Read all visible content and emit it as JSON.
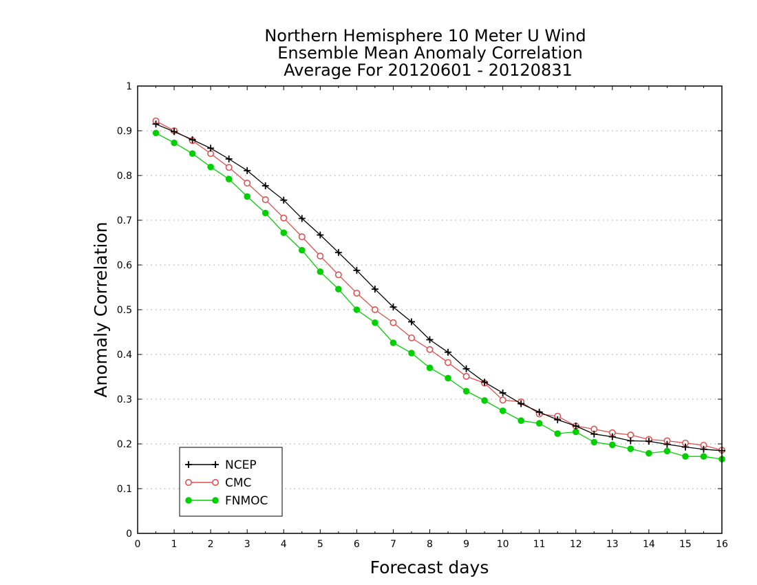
{
  "chart_data": {
    "type": "line",
    "title": [
      "Northern Hemisphere 10 Meter U Wind",
      "Ensemble Mean Anomaly Correlation",
      "Average For 20120601 - 20120831"
    ],
    "xlabel": "Forecast days",
    "ylabel": "Anomaly Correlation",
    "xlim": [
      0,
      16
    ],
    "ylim": [
      0,
      1
    ],
    "xticks": [
      0,
      1,
      2,
      3,
      4,
      5,
      6,
      7,
      8,
      9,
      10,
      11,
      12,
      13,
      14,
      15,
      16
    ],
    "yticks": [
      0,
      0.1,
      0.2,
      0.3,
      0.4,
      0.5,
      0.6,
      0.7,
      0.8,
      0.9,
      1
    ],
    "grid": true,
    "legend_position": "bottom-left",
    "x": [
      0.5,
      1,
      1.5,
      2,
      2.5,
      3,
      3.5,
      4,
      4.5,
      5,
      5.5,
      6,
      6.5,
      7,
      7.5,
      8,
      8.5,
      9,
      9.5,
      10,
      10.5,
      11,
      11.5,
      12,
      12.5,
      13,
      13.5,
      14,
      14.5,
      15,
      15.5,
      16
    ],
    "series": [
      {
        "name": "NCEP",
        "color": "#000000",
        "marker": "plus",
        "values": [
          0.915,
          0.898,
          0.88,
          0.861,
          0.837,
          0.811,
          0.777,
          0.745,
          0.704,
          0.667,
          0.628,
          0.588,
          0.546,
          0.506,
          0.473,
          0.433,
          0.405,
          0.368,
          0.338,
          0.314,
          0.29,
          0.271,
          0.254,
          0.24,
          0.222,
          0.216,
          0.207,
          0.206,
          0.199,
          0.193,
          0.188,
          0.185
        ]
      },
      {
        "name": "CMC",
        "color": "#e05050",
        "marker": "open-circle",
        "values": [
          0.922,
          0.9,
          0.878,
          0.849,
          0.818,
          0.783,
          0.746,
          0.705,
          0.663,
          0.62,
          0.578,
          0.537,
          0.5,
          0.471,
          0.437,
          0.411,
          0.382,
          0.351,
          0.336,
          0.298,
          0.294,
          0.267,
          0.262,
          0.24,
          0.233,
          0.225,
          0.22,
          0.21,
          0.207,
          0.202,
          0.197,
          0.186
        ]
      },
      {
        "name": "FNMOC",
        "color": "#00d000",
        "marker": "filled-circle",
        "values": [
          0.895,
          0.873,
          0.849,
          0.819,
          0.792,
          0.753,
          0.716,
          0.672,
          0.633,
          0.585,
          0.546,
          0.5,
          0.471,
          0.426,
          0.403,
          0.37,
          0.347,
          0.318,
          0.297,
          0.274,
          0.252,
          0.246,
          0.223,
          0.227,
          0.204,
          0.198,
          0.189,
          0.179,
          0.184,
          0.172,
          0.172,
          0.166
        ]
      }
    ]
  }
}
